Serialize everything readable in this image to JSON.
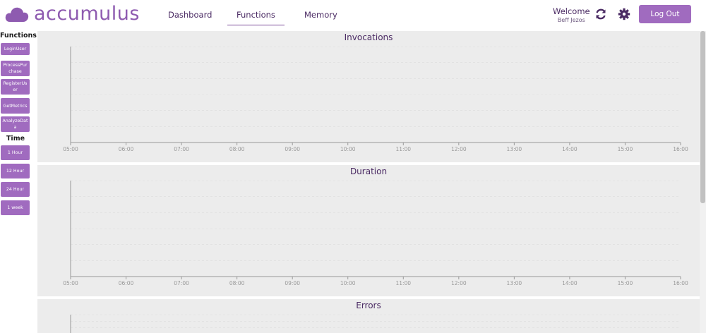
{
  "app": {
    "name": "accumulus",
    "brand_color": "#8e5bb0",
    "accent": "#a06bbf"
  },
  "nav": {
    "items": [
      {
        "label": "Dashboard"
      },
      {
        "label": "Functions",
        "active": true
      },
      {
        "label": "Memory"
      }
    ]
  },
  "user": {
    "welcome": "Welcome",
    "name": "Beff Jezos"
  },
  "actions": {
    "refresh_icon": "refresh-icon",
    "settings_icon": "gear-icon",
    "logout_label": "Log Out"
  },
  "sidebar": {
    "functions_title": "Functions",
    "functions": [
      "LoginUser",
      "ProcessPurchase",
      "RegisterUser",
      "GetMetrics",
      "AnalyzeData"
    ],
    "time_title": "Time",
    "times": [
      "1 Hour",
      "12 Hour",
      "24 Hour",
      "1 week"
    ]
  },
  "charts": [
    {
      "title": "Invocations",
      "x_ticks": [
        "05:00",
        "06:00",
        "07:00",
        "08:00",
        "09:00",
        "10:00",
        "11:00",
        "12:00",
        "13:00",
        "14:00",
        "15:00",
        "16:00"
      ]
    },
    {
      "title": "Duration",
      "x_ticks": [
        "05:00",
        "06:00",
        "07:00",
        "08:00",
        "09:00",
        "10:00",
        "11:00",
        "12:00",
        "13:00",
        "14:00",
        "15:00",
        "16:00"
      ]
    },
    {
      "title": "Errors",
      "x_ticks": []
    }
  ],
  "chart_data": [
    {
      "type": "line",
      "title": "Invocations",
      "x": [
        "05:00",
        "06:00",
        "07:00",
        "08:00",
        "09:00",
        "10:00",
        "11:00",
        "12:00",
        "13:00",
        "14:00",
        "15:00",
        "16:00"
      ],
      "series": [],
      "grid": true
    },
    {
      "type": "line",
      "title": "Duration",
      "x": [
        "05:00",
        "06:00",
        "07:00",
        "08:00",
        "09:00",
        "10:00",
        "11:00",
        "12:00",
        "13:00",
        "14:00",
        "15:00",
        "16:00"
      ],
      "series": [],
      "grid": true
    },
    {
      "type": "line",
      "title": "Errors",
      "x": [],
      "series": [],
      "grid": true
    }
  ]
}
